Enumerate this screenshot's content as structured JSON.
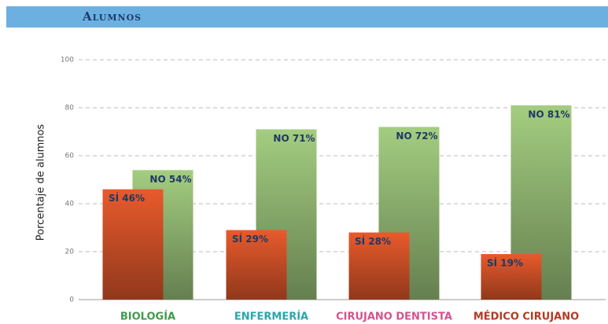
{
  "header": {
    "title": "Alumnos"
  },
  "chart_data": {
    "type": "bar",
    "categories": [
      "BIOLOGÍA",
      "ENFERMERÍA",
      "CIRUJANO DENTISTA",
      "MÉDICO CIRUJANO"
    ],
    "category_colors": [
      "#3f9a4c",
      "#2aa6aa",
      "#d4528f",
      "#b23a22"
    ],
    "series": [
      {
        "name": "SÍ",
        "color": "#e85a2c",
        "values": [
          46,
          29,
          28,
          19
        ],
        "value_labels": [
          "SÍ 46%",
          "SÍ 29%",
          "SÍ 28%",
          "SÍ 19%"
        ]
      },
      {
        "name": "NO",
        "color": "#a3cd80",
        "values": [
          54,
          71,
          72,
          81
        ],
        "value_labels": [
          "NO 54%",
          "NO 71%",
          "NO 72%",
          "NO 81%"
        ]
      }
    ],
    "ylabel": "Porcentaje de alumnos",
    "ylim": [
      0,
      100
    ],
    "yticks": [
      0,
      20,
      40,
      60,
      80,
      100
    ],
    "grid": true
  }
}
